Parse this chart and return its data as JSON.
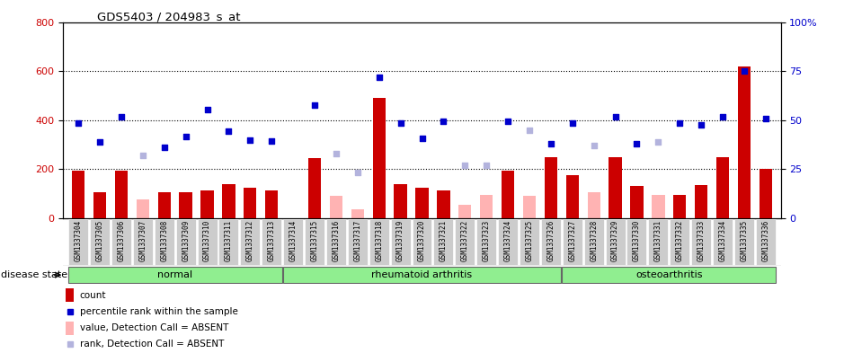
{
  "title": "GDS5403 / 204983_s_at",
  "samples": [
    "GSM1337304",
    "GSM1337305",
    "GSM1337306",
    "GSM1337307",
    "GSM1337308",
    "GSM1337309",
    "GSM1337310",
    "GSM1337311",
    "GSM1337312",
    "GSM1337313",
    "GSM1337314",
    "GSM1337315",
    "GSM1337316",
    "GSM1337317",
    "GSM1337318",
    "GSM1337319",
    "GSM1337320",
    "GSM1337321",
    "GSM1337322",
    "GSM1337323",
    "GSM1337324",
    "GSM1337325",
    "GSM1337326",
    "GSM1337327",
    "GSM1337328",
    "GSM1337329",
    "GSM1337330",
    "GSM1337331",
    "GSM1337332",
    "GSM1337333",
    "GSM1337334",
    "GSM1337335",
    "GSM1337336"
  ],
  "count": [
    195,
    105,
    195,
    null,
    105,
    105,
    115,
    140,
    125,
    115,
    null,
    245,
    null,
    null,
    490,
    140,
    125,
    115,
    null,
    null,
    195,
    null,
    250,
    175,
    null,
    250,
    130,
    null,
    95,
    135,
    250,
    620,
    200
  ],
  "count_absent": [
    null,
    null,
    null,
    75,
    null,
    null,
    null,
    null,
    null,
    null,
    null,
    null,
    90,
    35,
    null,
    null,
    null,
    null,
    55,
    95,
    null,
    90,
    null,
    null,
    105,
    null,
    null,
    95,
    null,
    null,
    null,
    null,
    null
  ],
  "rank": [
    390,
    310,
    415,
    null,
    290,
    335,
    445,
    355,
    320,
    315,
    null,
    460,
    null,
    null,
    575,
    390,
    325,
    395,
    null,
    null,
    395,
    null,
    305,
    390,
    null,
    415,
    305,
    null,
    390,
    380,
    415,
    600,
    405
  ],
  "rank_absent": [
    null,
    null,
    null,
    255,
    null,
    null,
    null,
    null,
    null,
    null,
    null,
    null,
    265,
    185,
    null,
    null,
    null,
    null,
    215,
    215,
    null,
    360,
    null,
    null,
    295,
    null,
    null,
    310,
    null,
    null,
    null,
    null,
    null
  ],
  "groups": [
    {
      "label": "normal",
      "start": 0,
      "end": 10
    },
    {
      "label": "rheumatoid arthritis",
      "start": 10,
      "end": 23
    },
    {
      "label": "osteoarthritis",
      "start": 23,
      "end": 33
    }
  ],
  "ylim_left": [
    0,
    800
  ],
  "ylim_right": [
    0,
    100
  ],
  "yticks_left": [
    0,
    200,
    400,
    600,
    800
  ],
  "yticks_right": [
    0,
    25,
    50,
    75,
    100
  ],
  "bar_color": "#cc0000",
  "bar_absent_color": "#ffb3b3",
  "dot_color": "#0000cc",
  "dot_absent_color": "#b3b3dd",
  "group_fill": "#90ee90",
  "group_edge": "#666666",
  "label_color_left": "#cc0000",
  "label_color_right": "#0000cc",
  "disease_state_label": "disease state",
  "grid_yticks": [
    200,
    400,
    600
  ],
  "legend_items": [
    {
      "label": "count",
      "color": "#cc0000",
      "type": "bar"
    },
    {
      "label": "percentile rank within the sample",
      "color": "#0000cc",
      "type": "dot"
    },
    {
      "label": "value, Detection Call = ABSENT",
      "color": "#ffb3b3",
      "type": "bar"
    },
    {
      "label": "rank, Detection Call = ABSENT",
      "color": "#b3b3dd",
      "type": "dot"
    }
  ]
}
